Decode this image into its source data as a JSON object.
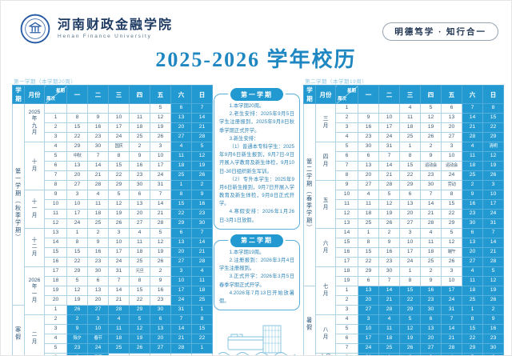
{
  "page": {
    "university_cn": "河南财政金融学院",
    "university_en": "Henan  Finance  University",
    "motto": "明德笃学 · 知行合一",
    "title": "2025-2026 学年校历"
  },
  "left_table": {
    "caption": "第一学期（本学期20周）",
    "columns": {
      "semester": "学期",
      "month": "月份",
      "week_top": "星期",
      "week_bottom": "周次",
      "days": [
        "一",
        "二",
        "三",
        "四",
        "五",
        "六",
        "日"
      ]
    },
    "semester_groups": [
      {
        "label": "第一学期（秋季学期）",
        "rows": 21
      },
      {
        "label": "寒假",
        "rows": 6
      }
    ],
    "month_groups": [
      {
        "label": "2025\n年\n九\n月",
        "rows": 4
      },
      {
        "label": "十\n月",
        "rows": 5
      },
      {
        "label": "十\n一\n月",
        "rows": 4
      },
      {
        "label": "十\n二\n月",
        "rows": 4
      },
      {
        "label": "2026\n年\n一\n月",
        "rows": 5
      },
      {
        "label": "二\n月",
        "rows": 5
      }
    ],
    "rows": [
      {
        "week": "",
        "days": [
          "",
          "",
          "",
          "",
          "5",
          "6",
          "7"
        ],
        "vacation": false
      },
      {
        "week": "1",
        "days": [
          "8",
          "9",
          "10",
          "11",
          "12",
          "13",
          "14"
        ],
        "vacation": false
      },
      {
        "week": "2",
        "days": [
          "15",
          "16",
          "17",
          "18",
          "19",
          "20",
          "21"
        ],
        "vacation": false
      },
      {
        "week": "3",
        "days": [
          "22",
          "23",
          "24",
          "25",
          "26",
          "27",
          "28"
        ],
        "vacation": false
      },
      {
        "week": "4",
        "days": [
          "29",
          "30",
          "国庆",
          "2",
          "3",
          "4",
          "5"
        ],
        "vacation": false
      },
      {
        "week": "5",
        "days": [
          "中秋",
          "7",
          "8",
          "9",
          "10",
          "11",
          "12"
        ],
        "vacation": false
      },
      {
        "week": "6",
        "days": [
          "13",
          "14",
          "15",
          "16",
          "17",
          "18",
          "19"
        ],
        "vacation": false
      },
      {
        "week": "7",
        "days": [
          "20",
          "21",
          "22",
          "23",
          "24",
          "25",
          "26"
        ],
        "vacation": false
      },
      {
        "week": "8",
        "days": [
          "27",
          "28",
          "29",
          "30",
          "31",
          "1",
          "2"
        ],
        "vacation": false
      },
      {
        "week": "9",
        "days": [
          "3",
          "4",
          "5",
          "6",
          "7",
          "8",
          "9"
        ],
        "vacation": false
      },
      {
        "week": "10",
        "days": [
          "10",
          "11",
          "12",
          "13",
          "14",
          "15",
          "16"
        ],
        "vacation": false
      },
      {
        "week": "11",
        "days": [
          "17",
          "18",
          "19",
          "20",
          "21",
          "22",
          "23"
        ],
        "vacation": false
      },
      {
        "week": "12",
        "days": [
          "24",
          "25",
          "26",
          "27",
          "28",
          "29",
          "30"
        ],
        "vacation": false
      },
      {
        "week": "13",
        "days": [
          "1",
          "2",
          "3",
          "4",
          "5",
          "6",
          "7"
        ],
        "vacation": false
      },
      {
        "week": "14",
        "days": [
          "8",
          "9",
          "10",
          "11",
          "12",
          "13",
          "14"
        ],
        "vacation": false
      },
      {
        "week": "15",
        "days": [
          "15",
          "16",
          "17",
          "18",
          "19",
          "20",
          "21"
        ],
        "vacation": false
      },
      {
        "week": "16",
        "days": [
          "22",
          "23",
          "24",
          "25",
          "26",
          "27",
          "28"
        ],
        "vacation": false
      },
      {
        "week": "17",
        "days": [
          "29",
          "30",
          "31",
          "元旦",
          "2",
          "3",
          "4"
        ],
        "vacation": false
      },
      {
        "week": "18",
        "days": [
          "5",
          "6",
          "7",
          "8",
          "9",
          "10",
          "11"
        ],
        "vacation": false
      },
      {
        "week": "19",
        "days": [
          "12",
          "13",
          "14",
          "15",
          "16",
          "17",
          "18"
        ],
        "vacation": false
      },
      {
        "week": "20",
        "days": [
          "19",
          "20",
          "21",
          "22",
          "23",
          "24",
          "25"
        ],
        "vacation": false
      },
      {
        "week": "1",
        "days": [
          "26",
          "27",
          "28",
          "29",
          "30",
          "31",
          "1"
        ],
        "vacation": true
      },
      {
        "week": "2",
        "days": [
          "2",
          "3",
          "4",
          "5",
          "6",
          "7",
          "8"
        ],
        "vacation": true
      },
      {
        "week": "3",
        "days": [
          "9",
          "10",
          "11",
          "12",
          "13",
          "14",
          "15"
        ],
        "vacation": true
      },
      {
        "week": "4",
        "days": [
          "除夕",
          "春节",
          "18",
          "19",
          "20",
          "21",
          "22"
        ],
        "vacation": true
      },
      {
        "week": "5",
        "days": [
          "23",
          "24",
          "25",
          "26",
          "27",
          "28",
          "1"
        ],
        "vacation": true
      },
      {
        "week": "6",
        "days": [
          "2",
          "元宵",
          "",
          "",
          "",
          "",
          ""
        ],
        "vacation": true
      }
    ]
  },
  "right_table": {
    "caption": "第二学期（本学期19周）",
    "columns": {
      "semester": "学期",
      "month": "月份",
      "week_top": "星期",
      "week_bottom": "周次",
      "days": [
        "一",
        "二",
        "三",
        "四",
        "五",
        "六",
        "日"
      ]
    },
    "semester_groups": [
      {
        "label": "第二学期（春季学期）",
        "rows": 19
      },
      {
        "label": "暑假",
        "rows": 8
      }
    ],
    "month_groups": [
      {
        "label": "三\n月",
        "rows": 4
      },
      {
        "label": "四\n月",
        "rows": 4
      },
      {
        "label": "五\n月",
        "rows": 5
      },
      {
        "label": "六\n月",
        "rows": 4
      },
      {
        "label": "七\n月",
        "rows": 5
      },
      {
        "label": "八\n月",
        "rows": 4
      },
      {
        "label": "九月",
        "rows": 1
      }
    ],
    "rows": [
      {
        "week": "1",
        "days": [
          "",
          "",
          "4",
          "5",
          "6",
          "7",
          "8"
        ],
        "vacation": false
      },
      {
        "week": "2",
        "days": [
          "9",
          "10",
          "11",
          "12",
          "13",
          "14",
          "15"
        ],
        "vacation": false
      },
      {
        "week": "3",
        "days": [
          "16",
          "17",
          "18",
          "19",
          "20",
          "21",
          "22"
        ],
        "vacation": false
      },
      {
        "week": "4",
        "days": [
          "23",
          "24",
          "25",
          "26",
          "27",
          "28",
          "29"
        ],
        "vacation": false
      },
      {
        "week": "5",
        "days": [
          "30",
          "31",
          "1",
          "2",
          "3",
          "4",
          "清明"
        ],
        "vacation": false
      },
      {
        "week": "6",
        "days": [
          "6",
          "7",
          "8",
          "9",
          "10",
          "11",
          "12"
        ],
        "vacation": false
      },
      {
        "week": "7",
        "days": [
          "13",
          "14",
          "15",
          "运动会",
          "运动会",
          "18",
          "19"
        ],
        "vacation": false
      },
      {
        "week": "8",
        "days": [
          "20",
          "21",
          "22",
          "23",
          "24",
          "25",
          "26"
        ],
        "vacation": false
      },
      {
        "week": "9",
        "days": [
          "27",
          "28",
          "29",
          "30",
          "劳动",
          "2",
          "3"
        ],
        "vacation": false
      },
      {
        "week": "10",
        "days": [
          "4",
          "5",
          "6",
          "7",
          "8",
          "9",
          "10"
        ],
        "vacation": false
      },
      {
        "week": "11",
        "days": [
          "11",
          "12",
          "13",
          "14",
          "15",
          "16",
          "17"
        ],
        "vacation": false
      },
      {
        "week": "12",
        "days": [
          "18",
          "19",
          "20",
          "21",
          "22",
          "23",
          "24"
        ],
        "vacation": false
      },
      {
        "week": "13",
        "days": [
          "25",
          "26",
          "27",
          "28",
          "29",
          "30",
          "31"
        ],
        "vacation": false
      },
      {
        "week": "14",
        "days": [
          "1",
          "2",
          "3",
          "4",
          "5",
          "6",
          "7"
        ],
        "vacation": false
      },
      {
        "week": "15",
        "days": [
          "8",
          "9",
          "10",
          "11",
          "12",
          "13",
          "14"
        ],
        "vacation": false
      },
      {
        "week": "16",
        "days": [
          "15",
          "16",
          "17",
          "18",
          "端午",
          "20",
          "21"
        ],
        "vacation": false
      },
      {
        "week": "17",
        "days": [
          "22",
          "23",
          "24",
          "25",
          "26",
          "27",
          "28"
        ],
        "vacation": false
      },
      {
        "week": "18",
        "days": [
          "29",
          "30",
          "1",
          "2",
          "3",
          "4",
          "5"
        ],
        "vacation": false
      },
      {
        "week": "19",
        "days": [
          "6",
          "7",
          "8",
          "9",
          "10",
          "11",
          "12"
        ],
        "vacation": false
      },
      {
        "week": "1",
        "days": [
          "13",
          "14",
          "15",
          "16",
          "17",
          "18",
          "19"
        ],
        "vacation": true
      },
      {
        "week": "2",
        "days": [
          "20",
          "21",
          "22",
          "23",
          "24",
          "25",
          "26"
        ],
        "vacation": true
      },
      {
        "week": "3",
        "days": [
          "27",
          "28",
          "29",
          "30",
          "31",
          "1",
          "2"
        ],
        "vacation": true
      },
      {
        "week": "4",
        "days": [
          "3",
          "4",
          "5",
          "6",
          "7",
          "8",
          "9"
        ],
        "vacation": true
      },
      {
        "week": "5",
        "days": [
          "10",
          "11",
          "12",
          "13",
          "14",
          "15",
          "16"
        ],
        "vacation": true
      },
      {
        "week": "6",
        "days": [
          "17",
          "18",
          "19",
          "20",
          "21",
          "22",
          "23"
        ],
        "vacation": true
      },
      {
        "week": "7",
        "days": [
          "24",
          "25",
          "26",
          "27",
          "28",
          "29",
          "30"
        ],
        "vacation": true
      },
      {
        "week": "8",
        "days": [
          "31",
          "1",
          "2",
          "3",
          "4",
          "5",
          "6"
        ],
        "vacation": true
      }
    ]
  },
  "notes": [
    {
      "title": "第一学期",
      "paragraphs": [
        "1.本学期20周。",
        "2.老生安排：2025年9月5日学生注册报到，2025年9月8日秋季学期正式开学。",
        "3.新生安排：",
        "（1）普通本专科学生：2025年9月6日新生报到，9月7日-9日开展入学教育及新生体检，9月10日-30日组织新生军训。",
        "（2）专升本学生：2025年9月6日新生报到，9月7日开展入学教育及新生体检，9月8日正式开学。",
        "4.寒假安排：2026年1月26日-3月1日放假。"
      ]
    },
    {
      "title": "第二学期",
      "paragraphs": [
        "1.本学期19周。",
        "2.注册报到：2026年3月4日学生注册报到。",
        "3.正式开学：2026年3月5日春季学期正式开学。",
        "4.2026年7月13日开始放暑假。"
      ]
    }
  ],
  "colors": {
    "accent_blue": "#229ad1",
    "title_blue": "#1e86c0",
    "cell_text": "#3c5a73",
    "note_text": "#2e84b8",
    "logo_navy": "#2b5da5"
  }
}
